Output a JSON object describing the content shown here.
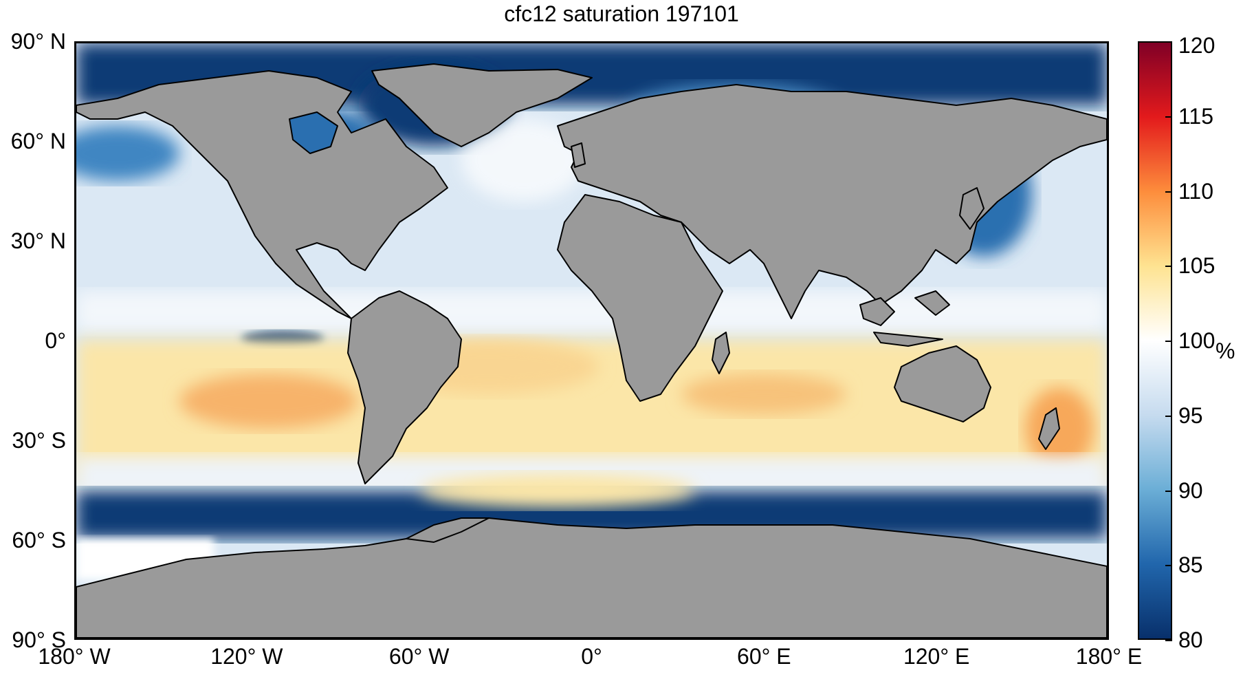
{
  "title": "cfc12 saturation 197101",
  "y_ticks": [
    {
      "label": "90° N",
      "lat": 90
    },
    {
      "label": "60° N",
      "lat": 60
    },
    {
      "label": "30° N",
      "lat": 30
    },
    {
      "label": "0°",
      "lat": 0
    },
    {
      "label": "30° S",
      "lat": -30
    },
    {
      "label": "60° S",
      "lat": -60
    },
    {
      "label": "90° S",
      "lat": -90
    }
  ],
  "x_ticks": [
    {
      "label": "180° W",
      "lon": -180
    },
    {
      "label": "120° W",
      "lon": -120
    },
    {
      "label": "60° W",
      "lon": -60
    },
    {
      "label": "0°",
      "lon": 0
    },
    {
      "label": "60° E",
      "lon": 60
    },
    {
      "label": "120° E",
      "lon": 120
    },
    {
      "label": "180° E",
      "lon": 180
    }
  ],
  "colorbar": {
    "unit": "%",
    "range": [
      80,
      120
    ],
    "ticks": [
      {
        "label": "120",
        "value": 120
      },
      {
        "label": "115",
        "value": 115
      },
      {
        "label": "110",
        "value": 110
      },
      {
        "label": "105",
        "value": 105
      },
      {
        "label": "100",
        "value": 100
      },
      {
        "label": "95",
        "value": 95
      },
      {
        "label": "90",
        "value": 90
      },
      {
        "label": "85",
        "value": 85
      },
      {
        "label": "80",
        "value": 80
      }
    ],
    "colors": {
      "c80": "#08306b",
      "c85": "#2166ac",
      "c90": "#6baed6",
      "c95": "#c6dbef",
      "c100": "#ffffff",
      "c105": "#fee391",
      "c110": "#fd8d3c",
      "c115": "#e31a1c",
      "c120": "#800026"
    }
  },
  "colors": {
    "land": "#9a9a9a",
    "coast": "#000000"
  }
}
